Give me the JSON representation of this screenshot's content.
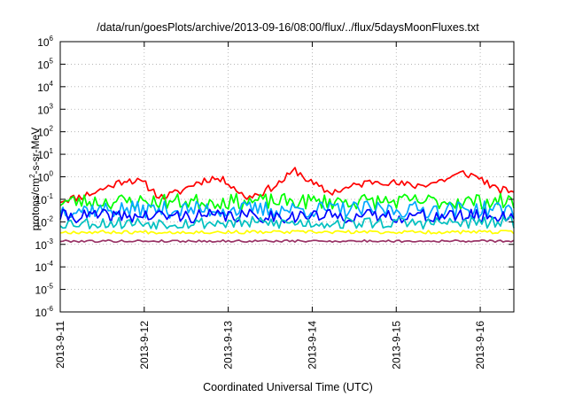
{
  "chart_data": {
    "type": "line",
    "title": "/data/run/goesPlots/archive/2013-09-16/08:00/flux/../flux/5daysMoonFluxes.txt",
    "xlabel": "Coordinated Universal Time (UTC)",
    "ylabel": "protons/cm²-s-sr-MeV",
    "ylabel_parts": {
      "pre": "protons/cm",
      "sup": "2",
      "post": "-s-sr-MeV"
    },
    "x_range_days": [
      0,
      5.4
    ],
    "x_ticks": [
      {
        "day": 0,
        "label": "2013-9-11"
      },
      {
        "day": 1,
        "label": "2013-9-12"
      },
      {
        "day": 2,
        "label": "2013-9-13"
      },
      {
        "day": 3,
        "label": "2013-9-14"
      },
      {
        "day": 4,
        "label": "2013-9-15"
      },
      {
        "day": 5,
        "label": "2013-9-16"
      }
    ],
    "y_scale": "log",
    "ylim": [
      1e-06,
      1000000.0
    ],
    "y_ticks": [
      {
        "exp": -6,
        "base": "10",
        "sup": "-6"
      },
      {
        "exp": -5,
        "base": "10",
        "sup": "-5"
      },
      {
        "exp": -4,
        "base": "10",
        "sup": "-4"
      },
      {
        "exp": -3,
        "base": "10",
        "sup": "-3"
      },
      {
        "exp": -2,
        "base": "10",
        "sup": "-2"
      },
      {
        "exp": -1,
        "base": "10",
        "sup": "-1"
      },
      {
        "exp": 0,
        "base": "10",
        "sup": "0"
      },
      {
        "exp": 1,
        "base": "10",
        "sup": "1"
      },
      {
        "exp": 2,
        "base": "10",
        "sup": "2"
      },
      {
        "exp": 3,
        "base": "10",
        "sup": "3"
      },
      {
        "exp": 4,
        "base": "10",
        "sup": "4"
      },
      {
        "exp": 5,
        "base": "10",
        "sup": "5"
      },
      {
        "exp": 6,
        "base": "10",
        "sup": "6"
      }
    ],
    "grid": true,
    "legend": "none",
    "series": [
      {
        "color": "#ff0000",
        "noise": 0.35,
        "seed": 11,
        "x": [
          0,
          0.2,
          0.4,
          0.6,
          0.8,
          1.0,
          1.2,
          1.4,
          1.6,
          1.8,
          2.0,
          2.2,
          2.4,
          2.6,
          2.8,
          3.0,
          3.2,
          3.4,
          3.6,
          3.8,
          4.0,
          4.2,
          4.4,
          4.6,
          4.8,
          5.0,
          5.2,
          5.4
        ],
        "y": [
          0.09,
          0.12,
          0.2,
          0.4,
          0.8,
          0.5,
          0.12,
          0.2,
          0.5,
          0.9,
          0.6,
          0.12,
          0.2,
          0.5,
          2.0,
          0.5,
          0.2,
          0.3,
          0.5,
          0.7,
          0.5,
          0.4,
          0.5,
          0.8,
          1.5,
          0.9,
          0.25,
          0.25
        ]
      },
      {
        "color": "#00ff00",
        "noise": 0.7,
        "seed": 23,
        "x": [
          0,
          5.4
        ],
        "y": [
          0.08,
          0.08
        ]
      },
      {
        "color": "#00a8ff",
        "noise": 0.75,
        "seed": 37,
        "x": [
          0,
          5.4
        ],
        "y": [
          0.035,
          0.035
        ]
      },
      {
        "color": "#0000ff",
        "noise": 0.6,
        "seed": 41,
        "x": [
          0,
          5.4
        ],
        "y": [
          0.018,
          0.018
        ]
      },
      {
        "color": "#00c0c0",
        "noise": 0.55,
        "seed": 53,
        "x": [
          0,
          5.4
        ],
        "y": [
          0.009,
          0.009
        ]
      },
      {
        "color": "#ffff00",
        "noise": 0.15,
        "seed": 67,
        "x": [
          0,
          5.4
        ],
        "y": [
          0.0035,
          0.0035
        ]
      },
      {
        "color": "#993366",
        "noise": 0.1,
        "seed": 79,
        "x": [
          0,
          5.4
        ],
        "y": [
          0.0014,
          0.0014
        ]
      }
    ]
  }
}
